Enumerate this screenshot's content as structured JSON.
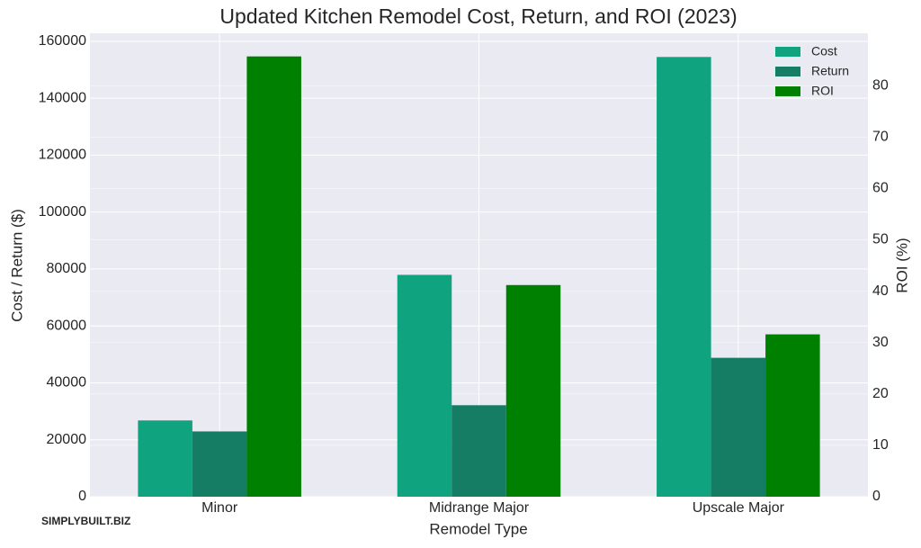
{
  "chart_data": {
    "type": "bar",
    "title": "Updated Kitchen Remodel Cost, Return, and ROI (2023)",
    "xlabel": "Remodel Type",
    "ylabel": "Cost / Return ($)",
    "y2label": "ROI (%)",
    "watermark": "SIMPLYBUILT.BIZ",
    "categories": [
      "Minor",
      "Midrange Major",
      "Upscale Major"
    ],
    "series": [
      {
        "name": "Cost",
        "color": "#10a37f",
        "values": [
          26790,
          77939,
          154483
        ]
      },
      {
        "name": "Return",
        "color": "#147d64",
        "values": [
          22932,
          32144,
          48795
        ]
      },
      {
        "name": "ROI",
        "color": "#008000",
        "axis": "y2",
        "values": [
          85.7,
          41.2,
          31.6
        ]
      }
    ],
    "ylim": [
      0,
      162800
    ],
    "yticks": [
      0,
      20000,
      40000,
      60000,
      80000,
      100000,
      120000,
      140000,
      160000
    ],
    "y2lim": [
      0,
      90.2
    ],
    "y2ticks": [
      0,
      10,
      20,
      30,
      40,
      50,
      60,
      70,
      80
    ],
    "grid": true,
    "legend": "upper right"
  }
}
